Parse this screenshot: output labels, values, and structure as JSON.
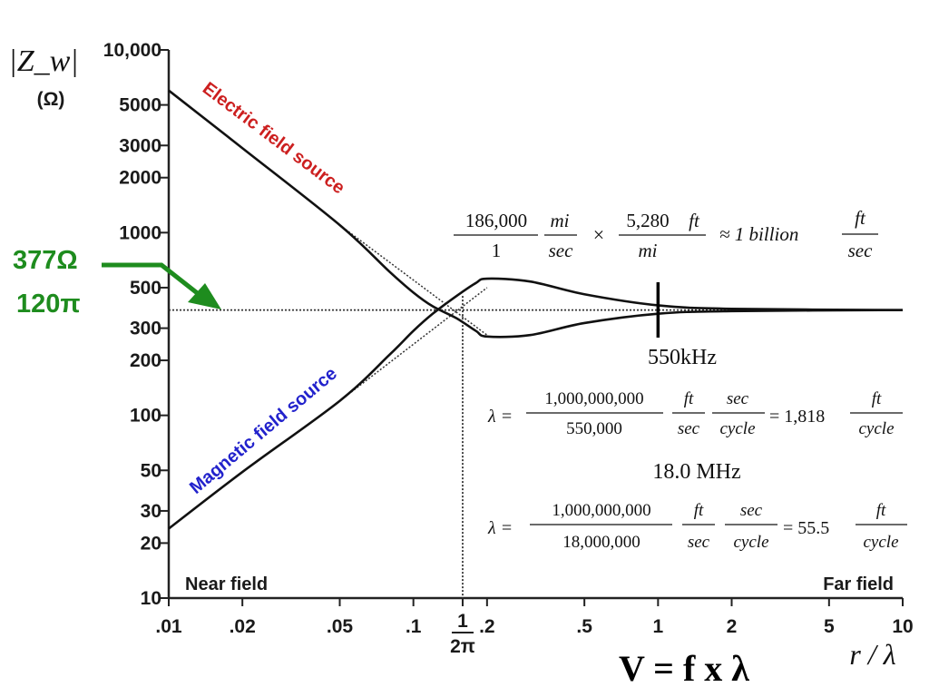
{
  "chart_data": {
    "type": "line",
    "xscale": "log",
    "yscale": "log",
    "xlim": [
      0.01,
      10
    ],
    "ylim": [
      10,
      10000
    ],
    "xlabel": "r / λ",
    "ylabel": "|Z_w|",
    "ylabel_unit": "(Ω)",
    "x_ticks": [
      0.01,
      0.02,
      0.05,
      0.1,
      0.159,
      0.2,
      0.5,
      1,
      2,
      5,
      10
    ],
    "x_tick_labels": [
      ".01",
      ".02",
      ".05",
      ".1",
      "1/2π",
      ".2",
      ".5",
      "1",
      "2",
      "5",
      "10"
    ],
    "y_ticks": [
      10,
      20,
      30,
      50,
      100,
      200,
      300,
      500,
      1000,
      2000,
      3000,
      5000,
      10000
    ],
    "y_tick_labels": [
      "10",
      "20",
      "30",
      "50",
      "100",
      "200",
      "300",
      "500",
      "1000",
      "2000",
      "3000",
      "5000",
      "10,000"
    ],
    "series": [
      {
        "name": "Electric field source",
        "x": [
          0.01,
          0.02,
          0.05,
          0.08,
          0.1,
          0.12,
          0.15,
          0.18,
          0.2,
          0.3,
          0.5,
          1,
          2,
          10
        ],
        "y": [
          6000,
          2900,
          1100,
          610,
          470,
          395,
          340,
          290,
          270,
          275,
          320,
          360,
          372,
          377
        ]
      },
      {
        "name": "Magnetic field source",
        "x": [
          0.01,
          0.02,
          0.05,
          0.08,
          0.1,
          0.12,
          0.15,
          0.18,
          0.2,
          0.3,
          0.5,
          1,
          2,
          10
        ],
        "y": [
          24,
          49,
          120,
          215,
          290,
          360,
          450,
          530,
          560,
          540,
          460,
          400,
          383,
          377
        ]
      }
    ],
    "reference_line": {
      "y": 377
    },
    "reference_x": 0.159,
    "annotations": {
      "near_field": "Near field",
      "far_field": "Far field",
      "marker_label": "550kHz",
      "marker_x": 1,
      "impedance_value": "377Ω",
      "impedance_expr": "120π",
      "formula": "V = f x λ",
      "eq1": {
        "n1": "186,000",
        "d1": "1",
        "u1n": "mi",
        "u1d": "sec",
        "times": "×",
        "n2": "5,280",
        "d2": "mi",
        "u2": "ft",
        "approx": "≈ 1 billion",
        "rn": "ft",
        "rd": "sec"
      },
      "eq2": {
        "lambda": "λ =",
        "num": "1,000,000,000",
        "den": "550,000",
        "fn": "ft",
        "fd": "sec",
        "sn": "sec",
        "sd": "cycle",
        "eq": "= 1,818",
        "rn": "ft",
        "rd": "cycle"
      },
      "freq2": "18.0 MHz",
      "eq3": {
        "lambda": "λ =",
        "num": "1,000,000,000",
        "den": "18,000,000",
        "fn": "ft",
        "fd": "sec",
        "sn": "sec",
        "sd": "cycle",
        "eq": "= 55.5",
        "rn": "ft",
        "rd": "cycle"
      }
    }
  },
  "colors": {
    "electric_label": "#cc1f1f",
    "magnetic_label": "#2222cc",
    "impedance_green": "#1e8c1e",
    "curve": "#111111"
  }
}
